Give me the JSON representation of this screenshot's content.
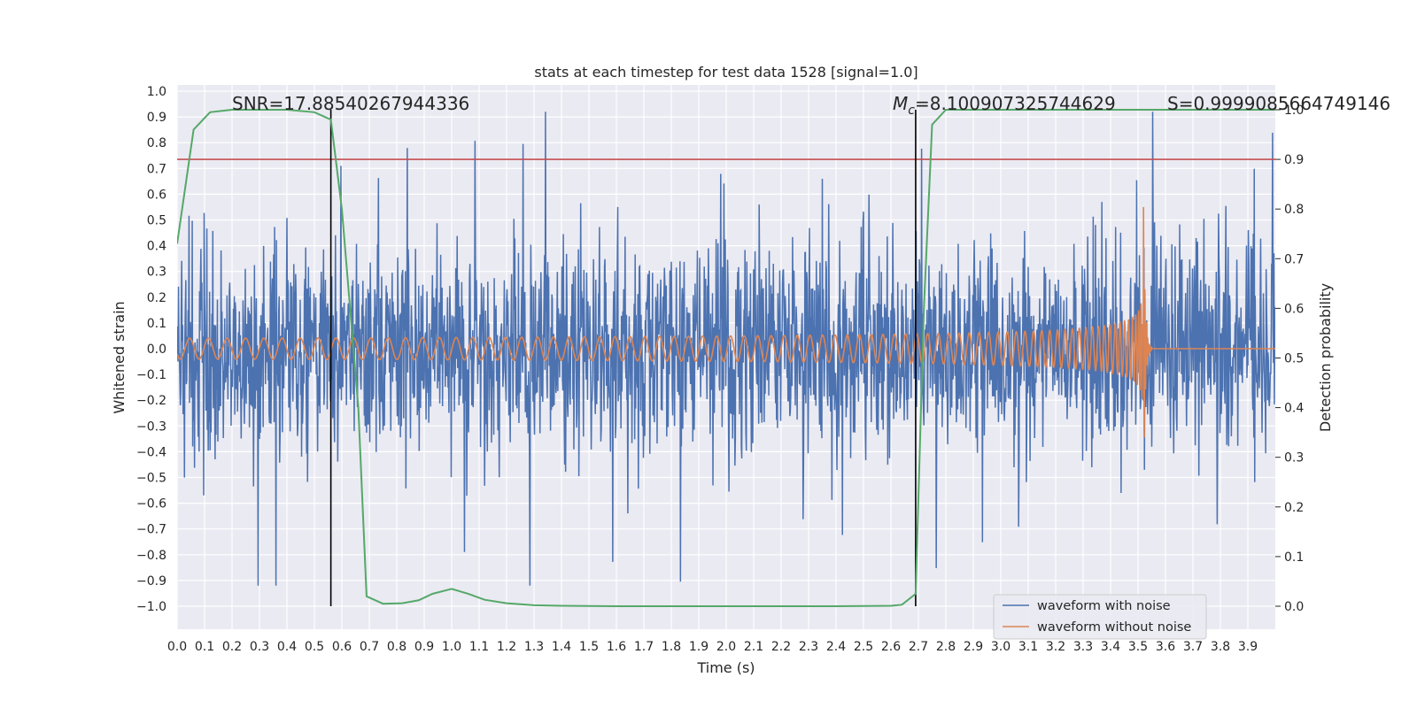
{
  "chart_data": {
    "type": "line",
    "title": "stats at each timestep for test data 1528 [signal=1.0]",
    "xlabel": "Time (s)",
    "ylabel_left": "Whitened strain",
    "ylabel_right": "Detection probability",
    "xlim": [
      0.0,
      4.0
    ],
    "ylim_left": [
      -1.1,
      1.0
    ],
    "ylim_right": [
      -0.05,
      1.0
    ],
    "x_ticks": [
      "0.0",
      "0.1",
      "0.2",
      "0.3",
      "0.4",
      "0.5",
      "0.6",
      "0.7",
      "0.8",
      "0.9",
      "1.0",
      "1.1",
      "1.2",
      "1.3",
      "1.4",
      "1.5",
      "1.6",
      "1.7",
      "1.8",
      "1.9",
      "2.0",
      "2.1",
      "2.2",
      "2.3",
      "2.4",
      "2.5",
      "2.6",
      "2.7",
      "2.8",
      "2.9",
      "3.0",
      "3.1",
      "3.2",
      "3.3",
      "3.4",
      "3.5",
      "3.6",
      "3.7",
      "3.8",
      "3.9"
    ],
    "y_ticks_left": [
      "1.0",
      "0.9",
      "0.8",
      "0.7",
      "0.6",
      "0.5",
      "0.4",
      "0.3",
      "0.2",
      "0.1",
      "0.0",
      "−0.1",
      "−0.2",
      "−0.3",
      "−0.4",
      "−0.5",
      "−0.6",
      "−0.7",
      "−0.8",
      "−0.9",
      "−1.0"
    ],
    "y_ticks_right": [
      "1.0",
      "0.9",
      "0.8",
      "0.7",
      "0.6",
      "0.5",
      "0.4",
      "0.3",
      "0.2",
      "0.1",
      "0.0"
    ],
    "grid": true,
    "legend_position": "lower-right",
    "annotations": {
      "snr": "SNR=17.88540267944336",
      "mc_symbol": "M",
      "mc_subscript": "c",
      "mc_value": "=8.100907325744629",
      "s": "S=0.9999085664749146"
    },
    "series": [
      {
        "name": "waveform with noise",
        "color": "#4c72b0",
        "kind": "noise",
        "amplitude_typical": 0.35,
        "amplitude_max": 0.92
      },
      {
        "name": "waveform without noise",
        "color": "#dd8452",
        "kind": "chirp",
        "merger_time": 3.52,
        "amplitude_start": 0.04,
        "amplitude_peak": 0.55
      },
      {
        "name": "detection probability",
        "color": "#55a868",
        "axis": "right",
        "x": [
          0.0,
          0.06,
          0.12,
          0.2,
          0.3,
          0.4,
          0.5,
          0.56,
          0.6,
          0.63,
          0.66,
          0.69,
          0.75,
          0.82,
          0.88,
          0.93,
          1.0,
          1.06,
          1.12,
          1.2,
          1.3,
          1.4,
          1.6,
          2.0,
          2.4,
          2.6,
          2.64,
          2.69,
          2.72,
          2.75,
          2.8,
          3.0,
          3.5,
          4.0
        ],
        "values": [
          0.73,
          0.96,
          0.995,
          1.0,
          1.0,
          1.0,
          0.995,
          0.98,
          0.8,
          0.6,
          0.4,
          0.02,
          0.005,
          0.006,
          0.012,
          0.025,
          0.035,
          0.025,
          0.013,
          0.006,
          0.002,
          0.001,
          0.0,
          0.0,
          0.0,
          0.001,
          0.003,
          0.025,
          0.6,
          0.97,
          1.0,
          1.0,
          1.0,
          1.0
        ]
      }
    ],
    "threshold": {
      "value": 0.9,
      "axis": "right",
      "color": "#c44e52"
    },
    "vlines": [
      {
        "x": 0.56,
        "color": "#000000"
      },
      {
        "x": 2.69,
        "color": "#000000"
      }
    ]
  }
}
